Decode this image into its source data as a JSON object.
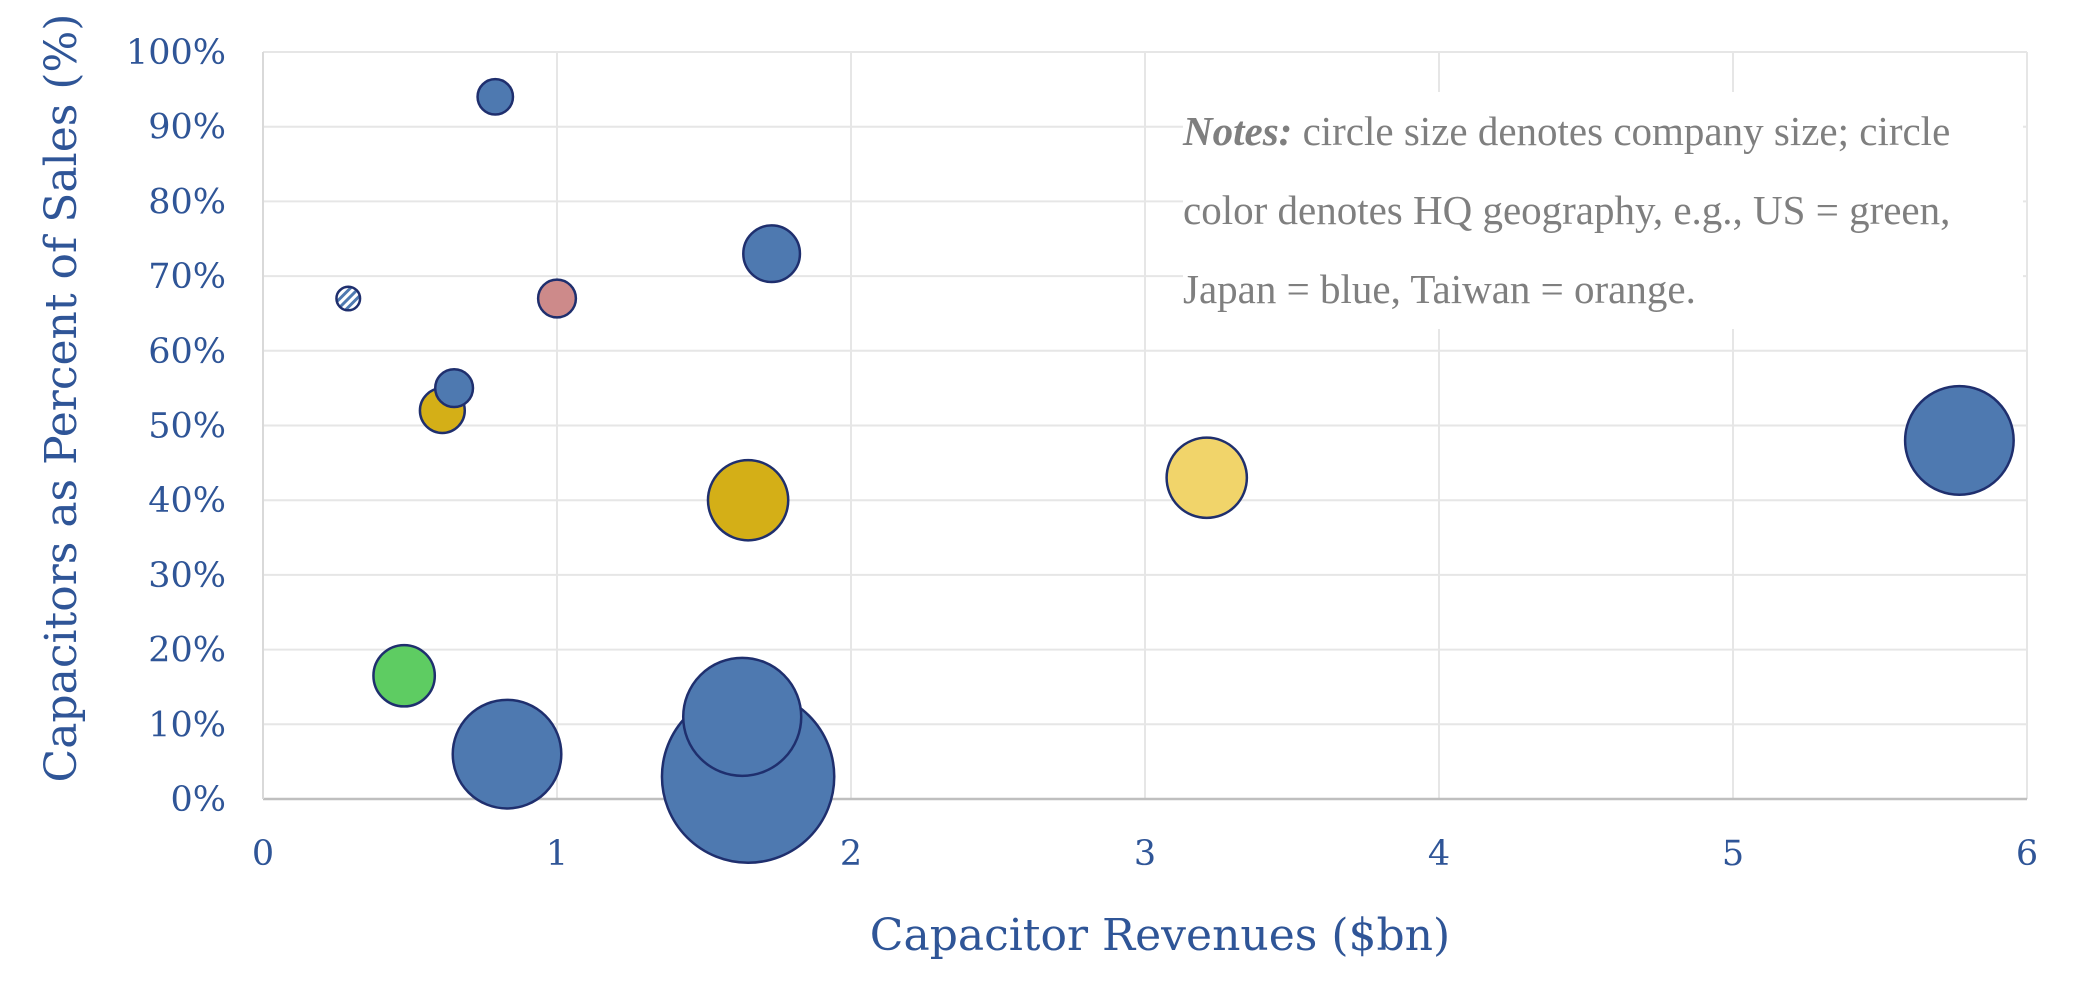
{
  "chart_data": {
    "type": "bubble",
    "xlabel": "Capacitor Revenues ($bn)",
    "ylabel": "Capacitors as Percent of Sales (%)",
    "xlim": [
      0,
      6
    ],
    "ylim": [
      0,
      100
    ],
    "x_ticks": [
      "0",
      "1",
      "2",
      "3",
      "4",
      "5",
      "6"
    ],
    "y_ticks": [
      "0%",
      "10%",
      "20%",
      "30%",
      "40%",
      "50%",
      "60%",
      "70%",
      "80%",
      "90%",
      "100%"
    ],
    "grid": true,
    "points": [
      {
        "x": 0.29,
        "y": 67,
        "size": 1.0,
        "color": "#4e79b0",
        "pattern": "hatched"
      },
      {
        "x": 0.79,
        "y": 94,
        "size": 1.5,
        "color": "#4e79b0"
      },
      {
        "x": 1.73,
        "y": 73,
        "size": 2.4,
        "color": "#4e79b0"
      },
      {
        "x": 1.0,
        "y": 67,
        "size": 1.6,
        "color": "#cd8a8a"
      },
      {
        "x": 0.65,
        "y": 55,
        "size": 1.6,
        "color": "#4e79b0"
      },
      {
        "x": 0.61,
        "y": 52,
        "size": 1.9,
        "color": "#d4af17"
      },
      {
        "x": 1.65,
        "y": 40,
        "size": 3.4,
        "color": "#d4af17"
      },
      {
        "x": 3.21,
        "y": 43,
        "size": 3.4,
        "color": "#f1d46a"
      },
      {
        "x": 5.77,
        "y": 48,
        "size": 4.6,
        "color": "#4e79b0"
      },
      {
        "x": 0.48,
        "y": 16.5,
        "size": 2.6,
        "color": "#5ecc62"
      },
      {
        "x": 0.83,
        "y": 6,
        "size": 4.6,
        "color": "#4e79b0"
      },
      {
        "x": 1.63,
        "y": 11,
        "size": 5.0,
        "color": "#4e79b0"
      },
      {
        "x": 1.65,
        "y": 3,
        "size": 7.3,
        "color": "#4e79b0"
      }
    ]
  },
  "notes": {
    "label": "Notes:",
    "text": " circle size denotes company size; circle  color denotes HQ geography, e.g., US = green, Japan = blue, Taiwan = orange."
  },
  "colors": {
    "axis_text": "#2f5597",
    "bubble_outline": "#1f2f6e",
    "grid": "#e6e6e6"
  }
}
